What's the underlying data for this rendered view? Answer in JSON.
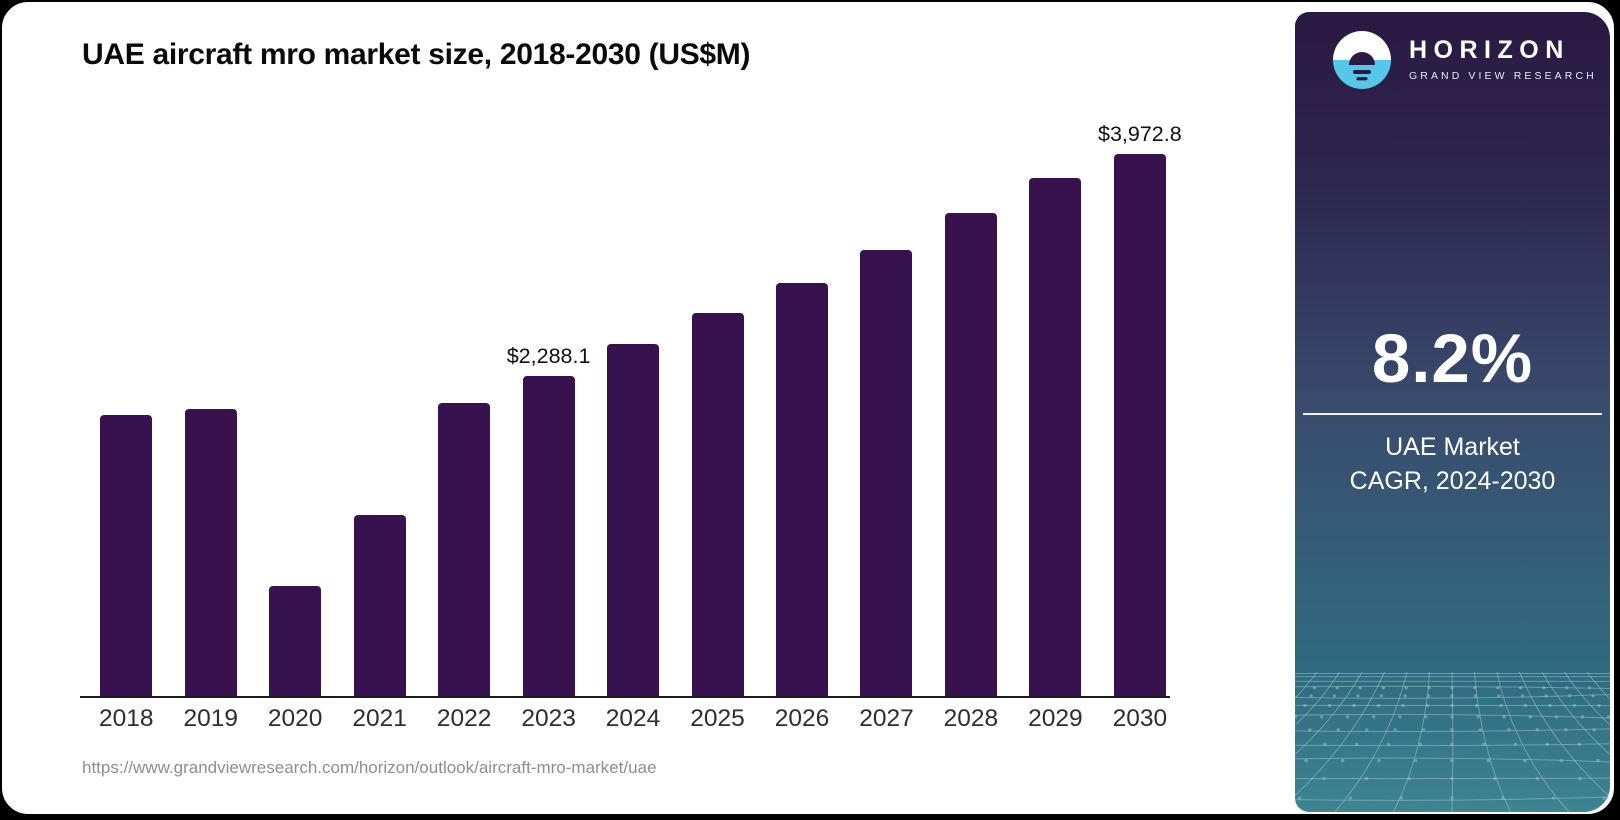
{
  "card": {
    "title": "UAE aircraft mro market size, 2018-2030 (US$M)",
    "source_url": "https://www.grandviewresearch.com/horizon/outlook/aircraft-mro-market/uae"
  },
  "chart_data": {
    "type": "bar",
    "title": "UAE aircraft mro market size, 2018-2030 (US$M)",
    "unit": "US$M",
    "categories": [
      "2018",
      "2019",
      "2020",
      "2021",
      "2022",
      "2023",
      "2024",
      "2025",
      "2026",
      "2027",
      "2028",
      "2029",
      "2030"
    ],
    "values": [
      2010,
      2055,
      795,
      1300,
      2095,
      2288.1,
      2520,
      2740,
      2955,
      3190,
      3450,
      3700,
      3972.8
    ],
    "bar_labels": [
      "",
      "",
      "",
      "",
      "",
      "$2,288.1",
      "",
      "",
      "",
      "",
      "",
      "",
      "$3,972.8"
    ],
    "bar_color": "#38124f",
    "ylim": [
      0,
      4100
    ],
    "grid": false,
    "legend_position": "none"
  },
  "side_panel": {
    "brand_name": "HORIZON",
    "brand_subtitle": "GRAND VIEW RESEARCH",
    "logo_icon": "horizon-sun-over-water-icon",
    "stat_value": "8.2%",
    "stat_label_line1": "UAE Market",
    "stat_label_line2": "CAGR, 2024-2030",
    "colors": {
      "panel_top": "#2a1941",
      "panel_mid": "#394a6c",
      "panel_bottom": "#3e8492",
      "logo_blue": "#56c6e9",
      "logo_dark": "#2b1a42",
      "mesh_line": "#9fc3cc"
    }
  }
}
